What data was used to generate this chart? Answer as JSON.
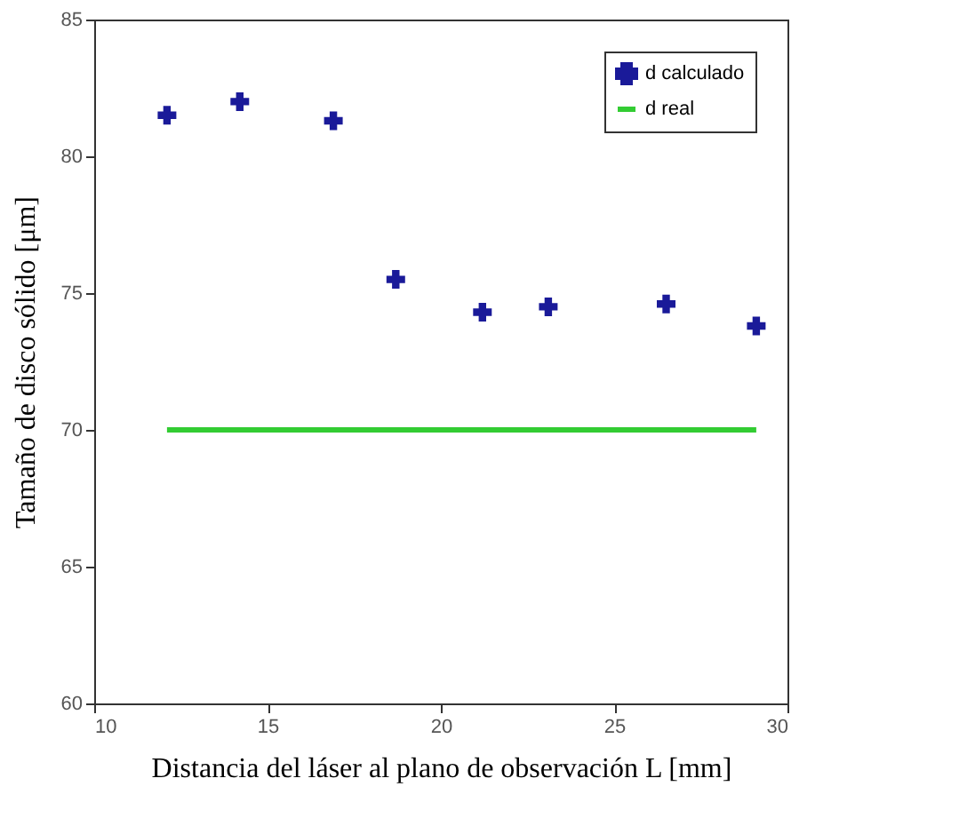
{
  "chart_data": {
    "type": "scatter",
    "xlabel": "Distancia del láser al plano de observación L [mm]",
    "ylabel": "Tamaño de disco sólido [μm]",
    "series": [
      {
        "name": "d calculado",
        "type": "scatter",
        "color": "#1a1a99",
        "marker": "cross",
        "x": [
          12.1,
          14.2,
          16.9,
          18.7,
          21.2,
          23.1,
          26.5,
          29.1
        ],
        "values": [
          81.5,
          82.0,
          81.3,
          75.5,
          74.3,
          74.5,
          74.6,
          73.8
        ]
      },
      {
        "name": "d real",
        "type": "line",
        "color": "#33cc33",
        "line_style": "solid",
        "marker": "none",
        "x": [
          12.1,
          29.1
        ],
        "values": [
          70,
          70
        ]
      }
    ],
    "xlim": [
      10,
      30
    ],
    "xticks": [
      10,
      15,
      20,
      25,
      30
    ],
    "ylim": [
      60,
      85
    ],
    "yticks": [
      60,
      65,
      70,
      75,
      80,
      85
    ],
    "grid": false,
    "legend": "top right"
  }
}
